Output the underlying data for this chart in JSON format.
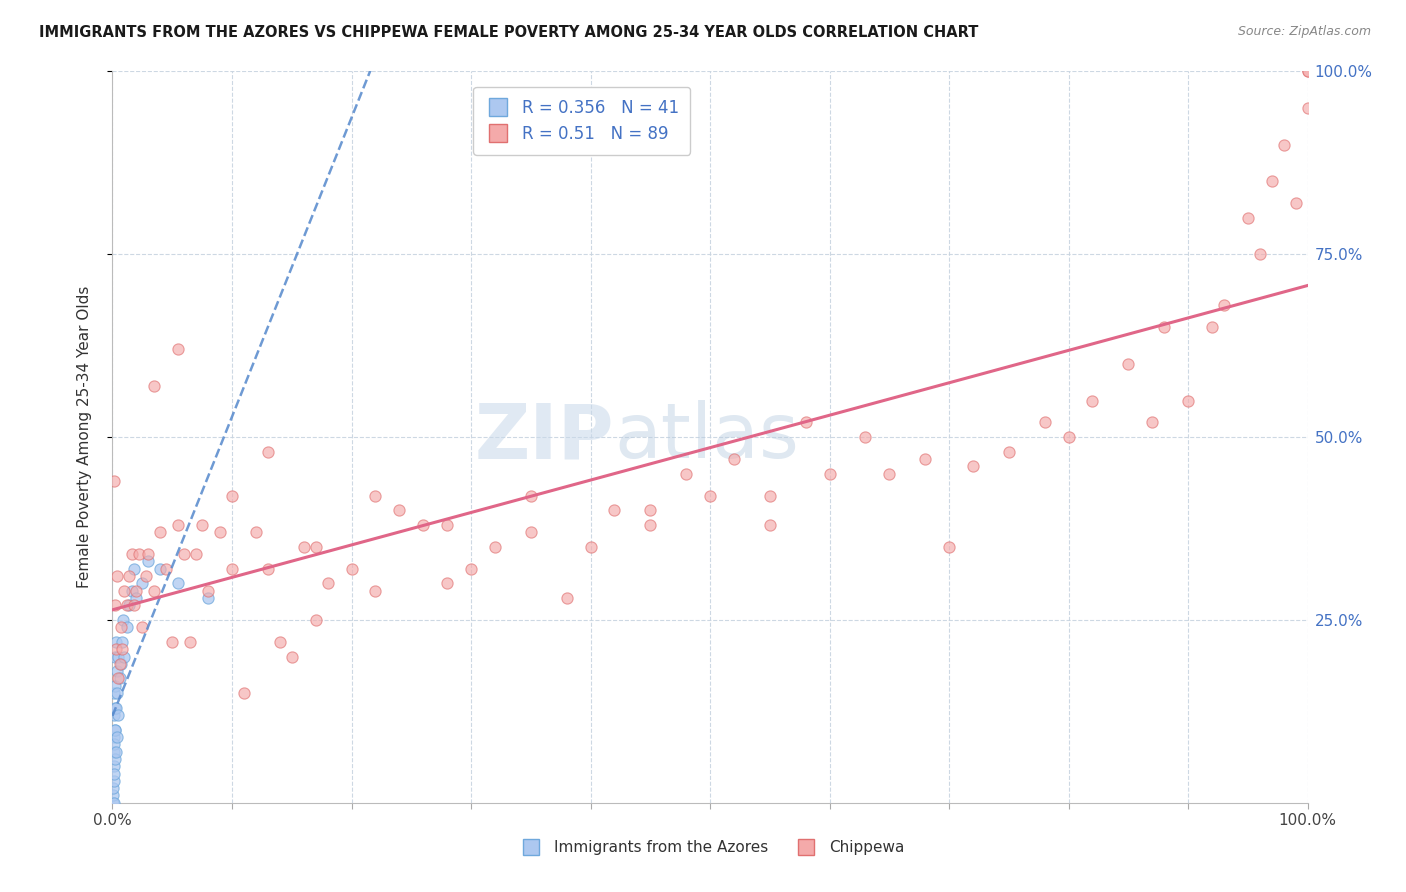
{
  "title": "IMMIGRANTS FROM THE AZORES VS CHIPPEWA FEMALE POVERTY AMONG 25-34 YEAR OLDS CORRELATION CHART",
  "source": "Source: ZipAtlas.com",
  "ylabel": "Female Poverty Among 25-34 Year Olds",
  "xlim": [
    0.0,
    1.0
  ],
  "ylim": [
    0.0,
    1.0
  ],
  "azores_R": 0.356,
  "azores_N": 41,
  "chippewa_R": 0.51,
  "chippewa_N": 89,
  "azores_color": "#adc8f0",
  "azores_edge": "#6fa8dc",
  "azores_line_color": "#5588cc",
  "chippewa_color": "#f4aaaa",
  "chippewa_edge": "#e07070",
  "chippewa_line_color": "#e06688",
  "grid_color": "#c8d4e0",
  "background": "#ffffff",
  "watermark_color": "#d0dce8",
  "title_color": "#1a1a1a",
  "right_tick_color": "#4472c4",
  "marker_size": 65,
  "azores_x": [
    0.0005,
    0.0007,
    0.0008,
    0.001,
    0.001,
    0.001,
    0.001,
    0.001,
    0.001,
    0.001,
    0.0012,
    0.0015,
    0.0018,
    0.002,
    0.002,
    0.002,
    0.002,
    0.0025,
    0.003,
    0.003,
    0.003,
    0.0035,
    0.004,
    0.004,
    0.005,
    0.005,
    0.006,
    0.007,
    0.008,
    0.009,
    0.01,
    0.012,
    0.014,
    0.016,
    0.018,
    0.02,
    0.025,
    0.03,
    0.04,
    0.055,
    0.08
  ],
  "azores_y": [
    0.0,
    0.01,
    0.02,
    0.0,
    0.03,
    0.05,
    0.07,
    0.09,
    0.12,
    0.15,
    0.04,
    0.08,
    0.13,
    0.06,
    0.1,
    0.16,
    0.2,
    0.1,
    0.07,
    0.13,
    0.22,
    0.15,
    0.09,
    0.18,
    0.12,
    0.2,
    0.17,
    0.19,
    0.22,
    0.25,
    0.2,
    0.24,
    0.27,
    0.29,
    0.32,
    0.28,
    0.3,
    0.33,
    0.32,
    0.3,
    0.28
  ],
  "chippewa_x": [
    0.001,
    0.002,
    0.003,
    0.004,
    0.005,
    0.006,
    0.007,
    0.008,
    0.01,
    0.012,
    0.014,
    0.016,
    0.018,
    0.02,
    0.022,
    0.025,
    0.028,
    0.03,
    0.035,
    0.04,
    0.045,
    0.05,
    0.055,
    0.06,
    0.065,
    0.07,
    0.08,
    0.09,
    0.1,
    0.11,
    0.12,
    0.13,
    0.14,
    0.15,
    0.16,
    0.17,
    0.18,
    0.2,
    0.22,
    0.24,
    0.26,
    0.28,
    0.3,
    0.32,
    0.35,
    0.38,
    0.4,
    0.42,
    0.45,
    0.48,
    0.5,
    0.52,
    0.55,
    0.58,
    0.6,
    0.63,
    0.65,
    0.68,
    0.7,
    0.72,
    0.75,
    0.78,
    0.8,
    0.82,
    0.85,
    0.87,
    0.88,
    0.9,
    0.92,
    0.93,
    0.95,
    0.96,
    0.97,
    0.98,
    0.99,
    1.0,
    1.0,
    1.0,
    0.035,
    0.055,
    0.075,
    0.1,
    0.13,
    0.17,
    0.22,
    0.28,
    0.35,
    0.45,
    0.55
  ],
  "chippewa_y": [
    0.44,
    0.27,
    0.21,
    0.31,
    0.17,
    0.19,
    0.24,
    0.21,
    0.29,
    0.27,
    0.31,
    0.34,
    0.27,
    0.29,
    0.34,
    0.24,
    0.31,
    0.34,
    0.29,
    0.37,
    0.32,
    0.22,
    0.38,
    0.34,
    0.22,
    0.34,
    0.29,
    0.37,
    0.32,
    0.15,
    0.37,
    0.32,
    0.22,
    0.2,
    0.35,
    0.25,
    0.3,
    0.32,
    0.29,
    0.4,
    0.38,
    0.3,
    0.32,
    0.35,
    0.37,
    0.28,
    0.35,
    0.4,
    0.38,
    0.45,
    0.42,
    0.47,
    0.42,
    0.52,
    0.45,
    0.5,
    0.45,
    0.47,
    0.35,
    0.46,
    0.48,
    0.52,
    0.5,
    0.55,
    0.6,
    0.52,
    0.65,
    0.55,
    0.65,
    0.68,
    0.8,
    0.75,
    0.85,
    0.9,
    0.82,
    0.95,
    1.0,
    1.0,
    0.57,
    0.62,
    0.38,
    0.42,
    0.48,
    0.35,
    0.42,
    0.38,
    0.42,
    0.4,
    0.38
  ]
}
